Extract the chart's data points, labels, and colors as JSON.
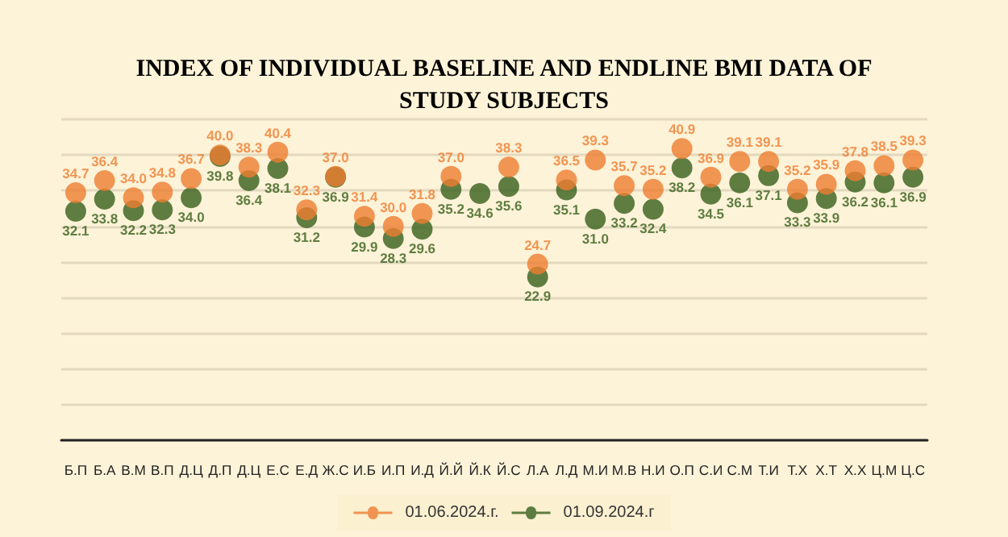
{
  "chart_data": {
    "type": "scatter",
    "title": "INDEX OF INDIVIDUAL BASELINE AND ENDLINE BMI DATA OF\nSTUDY SUBJECTS",
    "categories": [
      "Б.П",
      "Б.А",
      "В.М",
      "В.П",
      "Д.Ц",
      "Д.П",
      "Д.Ц",
      "Е.С",
      "Е.Д",
      "Ж.С",
      "И.Б",
      "И.П",
      "И.Д",
      "Й.Й",
      "Й.К",
      "Й.С",
      "Л.А",
      "Л.Д",
      "М.И",
      "М.В",
      "Н.И",
      "О.П",
      "С.И",
      "С.М",
      "Т.И",
      "Т.Х",
      "Х.Т",
      "Х.Х",
      "Ц.М",
      "Ц.С"
    ],
    "series": [
      {
        "name": "01.06.2024.г.",
        "color": "#ed7d31",
        "values": [
          34.7,
          36.4,
          34.0,
          34.8,
          36.7,
          40.0,
          38.3,
          40.4,
          32.3,
          37.0,
          31.4,
          30.0,
          31.8,
          37.0,
          null,
          38.3,
          24.7,
          36.5,
          39.3,
          35.7,
          35.2,
          40.9,
          36.9,
          39.1,
          39.1,
          35.2,
          35.9,
          37.8,
          38.5,
          39.3
        ],
        "value_labels": [
          "34.7",
          "36.4",
          "34.0",
          "34.8",
          "36.7",
          "40.0",
          "38.3",
          "40.4",
          "32.3",
          "37.0",
          "31.4",
          "30.0",
          "31.8",
          "37.0",
          null,
          "38.3",
          "24.7",
          "36.5",
          "39.3",
          "35.7",
          "35.2",
          "40.9",
          "36.9",
          "39.1",
          "39.1",
          "35.2",
          "35.9",
          "37.8",
          "38.5",
          "39.3"
        ]
      },
      {
        "name": "01.09.2024.г",
        "color": "#375f1b",
        "values": [
          32.1,
          33.8,
          32.2,
          32.3,
          34.0,
          39.8,
          36.4,
          38.1,
          31.2,
          36.9,
          29.9,
          28.3,
          29.6,
          35.2,
          34.6,
          35.6,
          22.9,
          35.1,
          31.0,
          33.2,
          32.4,
          38.2,
          34.5,
          36.1,
          37.1,
          33.3,
          33.9,
          36.2,
          36.1,
          36.9
        ],
        "value_labels": [
          "32.1",
          "33.8",
          "32.2",
          "32.3",
          "34.0",
          "39.8",
          "36.4",
          "38.1",
          "31.2",
          "36.9",
          "29.9",
          "28.3",
          "29.6",
          "35.2",
          "34.6",
          "35.6",
          "22.9",
          "35.1",
          "31.0",
          "33.2",
          "32.4",
          "38.2",
          "34.5",
          "36.1",
          "37.1",
          "33.3",
          "33.9",
          "36.2",
          "36.1",
          "36.9"
        ]
      }
    ],
    "ylim": [
      0,
      45
    ],
    "yticks": [
      {
        "value": 0,
        "label": null
      },
      {
        "value": 5,
        "label": null
      },
      {
        "value": 10,
        "label": null
      },
      {
        "value": 15,
        "label": null
      },
      {
        "value": 20,
        "label": null
      },
      {
        "value": 25,
        "label": null
      },
      {
        "value": 30,
        "label": null
      },
      {
        "value": 35,
        "label": null
      },
      {
        "value": 40,
        "label": null
      },
      {
        "value": 45,
        "label": null
      }
    ],
    "tick_labels": "x",
    "grid": "y",
    "legend": "bottom",
    "marker": "circle"
  }
}
